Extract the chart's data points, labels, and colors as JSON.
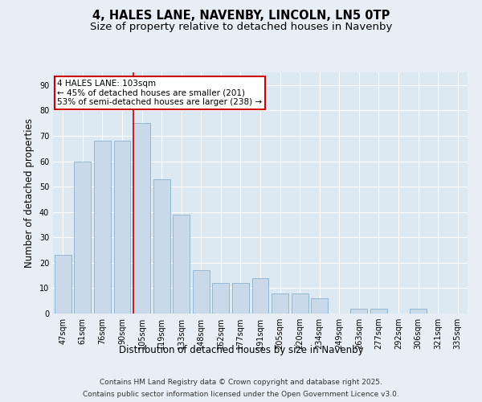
{
  "title1": "4, HALES LANE, NAVENBY, LINCOLN, LN5 0TP",
  "title2": "Size of property relative to detached houses in Navenby",
  "xlabel": "Distribution of detached houses by size in Navenby",
  "ylabel": "Number of detached properties",
  "categories": [
    "47sqm",
    "61sqm",
    "76sqm",
    "90sqm",
    "105sqm",
    "119sqm",
    "133sqm",
    "148sqm",
    "162sqm",
    "177sqm",
    "191sqm",
    "205sqm",
    "220sqm",
    "234sqm",
    "249sqm",
    "263sqm",
    "277sqm",
    "292sqm",
    "306sqm",
    "321sqm",
    "335sqm"
  ],
  "values": [
    23,
    60,
    68,
    68,
    75,
    53,
    39,
    17,
    12,
    12,
    14,
    8,
    8,
    6,
    0,
    2,
    2,
    0,
    2,
    0,
    0
  ],
  "bar_color": "#c9d9ea",
  "bar_edge_color": "#8ab0cc",
  "red_line_bar_index": 4,
  "annotation_text": "4 HALES LANE: 103sqm\n← 45% of detached houses are smaller (201)\n53% of semi-detached houses are larger (238) →",
  "annotation_box_facecolor": "#ffffff",
  "annotation_box_edgecolor": "#cc0000",
  "ylim": [
    0,
    95
  ],
  "yticks": [
    0,
    10,
    20,
    30,
    40,
    50,
    60,
    70,
    80,
    90
  ],
  "bg_color": "#e8eef5",
  "plot_bg_color": "#dce8f2",
  "grid_color": "#ffffff",
  "footer_line1": "Contains HM Land Registry data © Crown copyright and database right 2025.",
  "footer_line2": "Contains public sector information licensed under the Open Government Licence v3.0.",
  "title_fontsize": 10.5,
  "subtitle_fontsize": 9.5,
  "axis_label_fontsize": 8.5,
  "tick_fontsize": 7,
  "annotation_fontsize": 7.5,
  "footer_fontsize": 6.5,
  "bar_width": 0.85
}
